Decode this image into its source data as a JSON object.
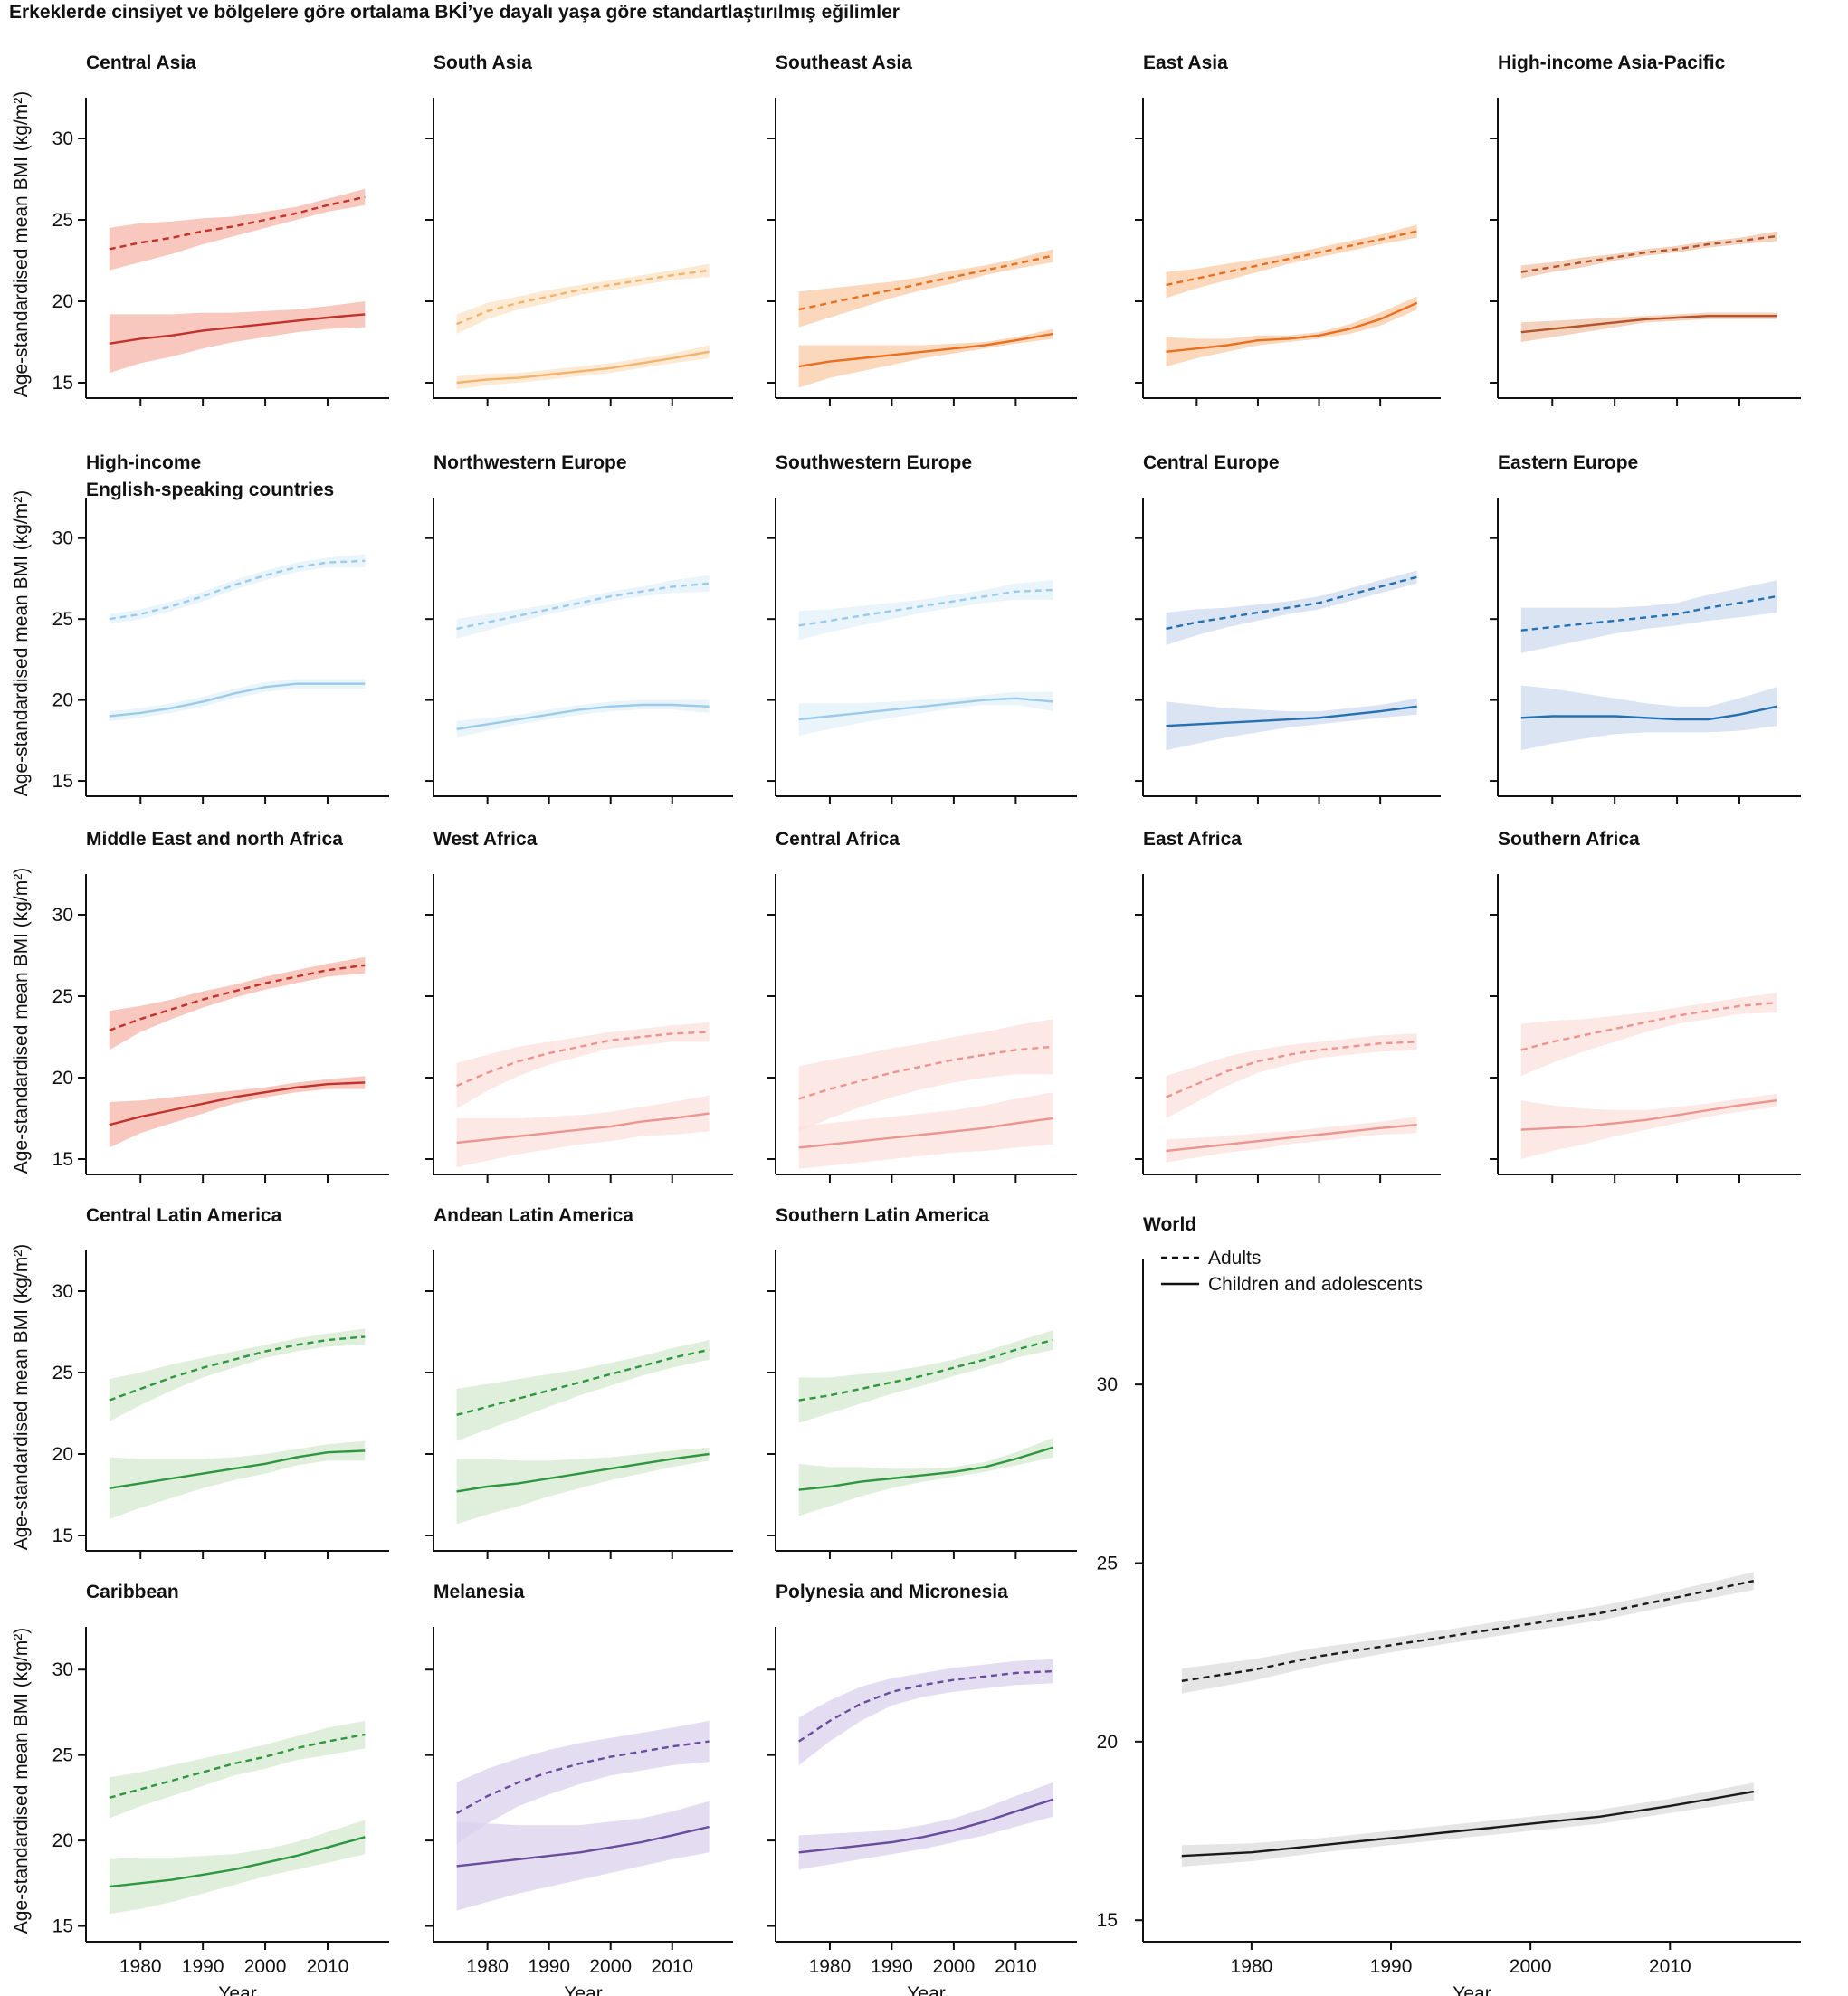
{
  "figure_title": "Erkeklerde cinsiyet ve bölgelere göre ortalama BKİ’ye dayalı yaşa göre standartlaştırılmış eğilimler",
  "chart_data": {
    "type": "line",
    "small_multiples": true,
    "x": [
      1975,
      1980,
      1985,
      1990,
      1995,
      2000,
      2005,
      2010,
      2016
    ],
    "x_ticks": [
      1980,
      1990,
      2000,
      2010
    ],
    "xlim": [
      1973,
      2019
    ],
    "xlabel": "Year",
    "ylabel": "Age-standardised mean BMI (kg/m²)",
    "y_ticks": [
      15,
      20,
      25,
      30
    ],
    "ylim": [
      14.5,
      32.5
    ],
    "grid": false,
    "legend": {
      "placement": "top-left of World panel",
      "entries": [
        {
          "label": "Adults",
          "style": "dashed"
        },
        {
          "label": "Children and adolescents",
          "style": "solid"
        }
      ]
    },
    "panels": [
      {
        "title": "Central Asia",
        "color": "#c0322b",
        "band": "#f5b5a8",
        "adults": [
          23.2,
          23.6,
          23.9,
          24.3,
          24.6,
          25.0,
          25.4,
          25.9,
          26.4
        ],
        "adults_ci": [
          1.3,
          1.2,
          1.0,
          0.8,
          0.6,
          0.5,
          0.4,
          0.4,
          0.5
        ],
        "children": [
          17.4,
          17.7,
          17.9,
          18.2,
          18.4,
          18.6,
          18.8,
          19.0,
          19.2
        ],
        "children_ci": [
          1.8,
          1.5,
          1.3,
          1.1,
          0.9,
          0.8,
          0.7,
          0.7,
          0.8
        ]
      },
      {
        "title": "South Asia",
        "color": "#f2b46c",
        "band": "#fce3c6",
        "adults": [
          18.6,
          19.4,
          19.9,
          20.3,
          20.7,
          21.0,
          21.3,
          21.6,
          21.9
        ],
        "adults_ci": [
          0.6,
          0.5,
          0.4,
          0.4,
          0.3,
          0.3,
          0.3,
          0.3,
          0.4
        ],
        "children": [
          15.0,
          15.2,
          15.3,
          15.5,
          15.7,
          15.9,
          16.2,
          16.5,
          16.9
        ],
        "children_ci": [
          0.4,
          0.35,
          0.3,
          0.3,
          0.3,
          0.3,
          0.3,
          0.3,
          0.4
        ]
      },
      {
        "title": "Southeast Asia",
        "color": "#e8701f",
        "band": "#f9c9a5",
        "adults": [
          19.5,
          19.9,
          20.3,
          20.7,
          21.1,
          21.5,
          21.9,
          22.3,
          22.8
        ],
        "adults_ci": [
          1.1,
          0.9,
          0.7,
          0.5,
          0.4,
          0.4,
          0.3,
          0.3,
          0.4
        ],
        "children": [
          16.0,
          16.3,
          16.5,
          16.7,
          16.9,
          17.1,
          17.3,
          17.6,
          18.0
        ],
        "children_ci": [
          1.3,
          1.0,
          0.8,
          0.6,
          0.4,
          0.3,
          0.2,
          0.2,
          0.3
        ]
      },
      {
        "title": "East Asia",
        "color": "#e8701f",
        "band": "#f9c9a5",
        "adults": [
          21.0,
          21.4,
          21.8,
          22.2,
          22.6,
          23.0,
          23.4,
          23.8,
          24.3
        ],
        "adults_ci": [
          0.8,
          0.6,
          0.5,
          0.4,
          0.3,
          0.3,
          0.3,
          0.3,
          0.4
        ],
        "children": [
          16.9,
          17.1,
          17.3,
          17.6,
          17.7,
          17.9,
          18.3,
          18.9,
          19.9
        ],
        "children_ci": [
          0.9,
          0.6,
          0.4,
          0.3,
          0.2,
          0.2,
          0.3,
          0.4,
          0.4
        ]
      },
      {
        "title": "High-income Asia-Pacific",
        "color": "#b5532a",
        "band": "#efc3a8",
        "adults": [
          21.8,
          22.1,
          22.4,
          22.7,
          23.0,
          23.2,
          23.5,
          23.7,
          24.0
        ],
        "adults_ci": [
          0.4,
          0.3,
          0.3,
          0.2,
          0.2,
          0.2,
          0.2,
          0.2,
          0.3
        ],
        "children": [
          18.1,
          18.3,
          18.5,
          18.7,
          18.9,
          19.0,
          19.1,
          19.1,
          19.1
        ],
        "children_ci": [
          0.6,
          0.5,
          0.4,
          0.3,
          0.2,
          0.2,
          0.2,
          0.2,
          0.2
        ]
      },
      {
        "title": "High-income English-speaking countries",
        "title_lines": [
          "High-income",
          "English-speaking countries"
        ],
        "color": "#9ccbea",
        "band": "#e2f0f9",
        "adults": [
          25.0,
          25.3,
          25.8,
          26.4,
          27.1,
          27.7,
          28.2,
          28.5,
          28.6
        ],
        "adults_ci": [
          0.3,
          0.3,
          0.3,
          0.3,
          0.3,
          0.3,
          0.3,
          0.3,
          0.4
        ],
        "children": [
          19.0,
          19.2,
          19.5,
          19.9,
          20.4,
          20.8,
          21.0,
          21.0,
          21.0
        ],
        "children_ci": [
          0.3,
          0.3,
          0.3,
          0.3,
          0.3,
          0.3,
          0.3,
          0.3,
          0.3
        ]
      },
      {
        "title": "Northwestern Europe",
        "color": "#9ccbea",
        "band": "#e2f0f9",
        "adults": [
          24.4,
          24.8,
          25.2,
          25.6,
          26.0,
          26.4,
          26.7,
          27.0,
          27.2
        ],
        "adults_ci": [
          0.6,
          0.5,
          0.4,
          0.3,
          0.3,
          0.3,
          0.3,
          0.4,
          0.5
        ],
        "children": [
          18.2,
          18.5,
          18.8,
          19.1,
          19.4,
          19.6,
          19.7,
          19.7,
          19.6
        ],
        "children_ci": [
          0.5,
          0.4,
          0.3,
          0.3,
          0.3,
          0.3,
          0.3,
          0.3,
          0.4
        ]
      },
      {
        "title": "Southwestern Europe",
        "color": "#9ccbea",
        "band": "#e2f0f9",
        "adults": [
          24.6,
          24.9,
          25.2,
          25.5,
          25.8,
          26.1,
          26.4,
          26.7,
          26.8
        ],
        "adults_ci": [
          0.9,
          0.7,
          0.6,
          0.5,
          0.4,
          0.4,
          0.4,
          0.5,
          0.6
        ],
        "children": [
          18.8,
          19.0,
          19.2,
          19.4,
          19.6,
          19.8,
          20.0,
          20.1,
          19.9
        ],
        "children_ci": [
          1.0,
          0.8,
          0.6,
          0.5,
          0.4,
          0.3,
          0.3,
          0.4,
          0.6
        ]
      },
      {
        "title": "Central Europe",
        "color": "#2470b1",
        "band": "#cfdbef",
        "adults": [
          24.4,
          24.8,
          25.1,
          25.4,
          25.7,
          26.0,
          26.5,
          27.0,
          27.6
        ],
        "adults_ci": [
          1.0,
          0.8,
          0.6,
          0.5,
          0.4,
          0.4,
          0.4,
          0.4,
          0.4
        ],
        "children": [
          18.4,
          18.5,
          18.6,
          18.7,
          18.8,
          18.9,
          19.1,
          19.3,
          19.6
        ],
        "children_ci": [
          1.5,
          1.2,
          0.9,
          0.7,
          0.5,
          0.4,
          0.4,
          0.4,
          0.5
        ]
      },
      {
        "title": "Eastern Europe",
        "color": "#2470b1",
        "band": "#cfdbef",
        "adults": [
          24.3,
          24.5,
          24.7,
          24.9,
          25.1,
          25.3,
          25.7,
          26.0,
          26.4
        ],
        "adults_ci": [
          1.4,
          1.2,
          1.0,
          0.8,
          0.7,
          0.7,
          0.8,
          0.9,
          1.0
        ],
        "children": [
          18.9,
          19.0,
          19.0,
          19.0,
          18.9,
          18.8,
          18.8,
          19.1,
          19.6
        ],
        "children_ci": [
          2.0,
          1.7,
          1.4,
          1.1,
          0.9,
          0.8,
          0.8,
          1.0,
          1.2
        ]
      },
      {
        "title": "Middle East and north Africa",
        "color": "#c0322b",
        "band": "#f5b5a8",
        "adults": [
          22.9,
          23.6,
          24.2,
          24.8,
          25.3,
          25.8,
          26.2,
          26.6,
          26.9
        ],
        "adults_ci": [
          1.2,
          0.8,
          0.6,
          0.5,
          0.4,
          0.4,
          0.4,
          0.4,
          0.5
        ],
        "children": [
          17.1,
          17.6,
          18.0,
          18.4,
          18.8,
          19.1,
          19.4,
          19.6,
          19.7
        ],
        "children_ci": [
          1.4,
          1.0,
          0.8,
          0.6,
          0.4,
          0.3,
          0.3,
          0.3,
          0.4
        ]
      },
      {
        "title": "West Africa",
        "color": "#ec9590",
        "band": "#fbe0dc",
        "adults": [
          19.5,
          20.3,
          21.0,
          21.5,
          21.9,
          22.3,
          22.5,
          22.7,
          22.8
        ],
        "adults_ci": [
          1.4,
          1.1,
          0.9,
          0.7,
          0.6,
          0.5,
          0.5,
          0.5,
          0.6
        ],
        "children": [
          16.0,
          16.2,
          16.4,
          16.6,
          16.8,
          17.0,
          17.3,
          17.5,
          17.8
        ],
        "children_ci": [
          1.5,
          1.3,
          1.1,
          1.0,
          0.9,
          0.9,
          0.9,
          1.0,
          1.1
        ]
      },
      {
        "title": "Central Africa",
        "color": "#ec9590",
        "band": "#fbe0dc",
        "adults": [
          18.7,
          19.3,
          19.8,
          20.3,
          20.7,
          21.1,
          21.4,
          21.7,
          21.9
        ],
        "adults_ci": [
          2.0,
          1.8,
          1.6,
          1.5,
          1.4,
          1.4,
          1.4,
          1.5,
          1.7
        ],
        "children": [
          15.7,
          15.9,
          16.1,
          16.3,
          16.5,
          16.7,
          16.9,
          17.2,
          17.5
        ],
        "children_ci": [
          1.3,
          1.3,
          1.3,
          1.3,
          1.3,
          1.3,
          1.4,
          1.5,
          1.6
        ]
      },
      {
        "title": "East Africa",
        "color": "#ec9590",
        "band": "#fbe0dc",
        "adults": [
          18.8,
          19.6,
          20.4,
          21.0,
          21.4,
          21.7,
          21.9,
          22.1,
          22.2
        ],
        "adults_ci": [
          1.3,
          1.1,
          0.9,
          0.7,
          0.6,
          0.5,
          0.5,
          0.5,
          0.5
        ],
        "children": [
          15.5,
          15.7,
          15.9,
          16.1,
          16.3,
          16.5,
          16.7,
          16.9,
          17.1
        ],
        "children_ci": [
          0.7,
          0.6,
          0.5,
          0.5,
          0.4,
          0.4,
          0.4,
          0.4,
          0.5
        ]
      },
      {
        "title": "Southern Africa",
        "color": "#ec9590",
        "band": "#fbe0dc",
        "adults": [
          21.7,
          22.2,
          22.6,
          23.0,
          23.4,
          23.8,
          24.1,
          24.4,
          24.6
        ],
        "adults_ci": [
          1.6,
          1.3,
          1.0,
          0.8,
          0.6,
          0.5,
          0.5,
          0.5,
          0.6
        ],
        "children": [
          16.8,
          16.9,
          17.0,
          17.2,
          17.4,
          17.7,
          18.0,
          18.3,
          18.6
        ],
        "children_ci": [
          1.8,
          1.4,
          1.1,
          0.8,
          0.6,
          0.5,
          0.4,
          0.4,
          0.4
        ]
      },
      {
        "title": "Central Latin America",
        "color": "#2e9640",
        "band": "#d4e9cf",
        "adults": [
          23.3,
          24.0,
          24.7,
          25.3,
          25.8,
          26.3,
          26.7,
          27.0,
          27.2
        ],
        "adults_ci": [
          1.3,
          1.0,
          0.8,
          0.6,
          0.5,
          0.4,
          0.4,
          0.4,
          0.5
        ],
        "children": [
          17.9,
          18.2,
          18.5,
          18.8,
          19.1,
          19.4,
          19.8,
          20.1,
          20.2
        ],
        "children_ci": [
          1.9,
          1.5,
          1.2,
          0.9,
          0.7,
          0.6,
          0.5,
          0.5,
          0.6
        ]
      },
      {
        "title": "Andean Latin America",
        "color": "#2e9640",
        "band": "#d4e9cf",
        "adults": [
          22.4,
          22.9,
          23.4,
          23.9,
          24.4,
          24.9,
          25.4,
          25.9,
          26.4
        ],
        "adults_ci": [
          1.6,
          1.4,
          1.2,
          1.0,
          0.8,
          0.7,
          0.6,
          0.6,
          0.6
        ],
        "children": [
          17.7,
          18.0,
          18.2,
          18.5,
          18.8,
          19.1,
          19.4,
          19.7,
          20.0
        ],
        "children_ci": [
          2.0,
          1.7,
          1.4,
          1.1,
          0.9,
          0.7,
          0.6,
          0.5,
          0.4
        ]
      },
      {
        "title": "Southern Latin America",
        "color": "#2e9640",
        "band": "#d4e9cf",
        "adults": [
          23.3,
          23.6,
          24.0,
          24.4,
          24.8,
          25.3,
          25.8,
          26.4,
          27.0
        ],
        "adults_ci": [
          1.4,
          1.1,
          0.9,
          0.7,
          0.6,
          0.5,
          0.5,
          0.5,
          0.6
        ],
        "children": [
          17.8,
          18.0,
          18.3,
          18.5,
          18.7,
          18.9,
          19.2,
          19.7,
          20.4
        ],
        "children_ci": [
          1.6,
          1.2,
          0.9,
          0.6,
          0.4,
          0.3,
          0.3,
          0.4,
          0.6
        ]
      },
      {
        "title": "Caribbean",
        "color": "#2e9640",
        "band": "#d4e9cf",
        "adults": [
          22.5,
          23.0,
          23.5,
          24.0,
          24.5,
          24.9,
          25.4,
          25.8,
          26.2
        ],
        "adults_ci": [
          1.2,
          1.0,
          0.9,
          0.8,
          0.7,
          0.7,
          0.7,
          0.8,
          0.8
        ],
        "children": [
          17.3,
          17.5,
          17.7,
          18.0,
          18.3,
          18.7,
          19.1,
          19.6,
          20.2
        ],
        "children_ci": [
          1.6,
          1.5,
          1.3,
          1.1,
          0.9,
          0.8,
          0.8,
          0.9,
          1.0
        ]
      },
      {
        "title": "Melanesia",
        "color": "#6a4c9c",
        "band": "#dbd2ee",
        "adults": [
          21.6,
          22.6,
          23.4,
          24.0,
          24.5,
          24.9,
          25.2,
          25.5,
          25.8
        ],
        "adults_ci": [
          1.8,
          1.6,
          1.4,
          1.3,
          1.2,
          1.1,
          1.1,
          1.1,
          1.2
        ],
        "children": [
          18.5,
          18.7,
          18.9,
          19.1,
          19.3,
          19.6,
          19.9,
          20.3,
          20.8
        ],
        "children_ci": [
          2.6,
          2.3,
          2.0,
          1.8,
          1.6,
          1.5,
          1.4,
          1.4,
          1.5
        ]
      },
      {
        "title": "Polynesia and Micronesia",
        "color": "#6a4c9c",
        "band": "#dbd2ee",
        "adults": [
          25.8,
          27.0,
          28.0,
          28.7,
          29.1,
          29.4,
          29.6,
          29.8,
          29.9
        ],
        "adults_ci": [
          1.4,
          1.2,
          1.0,
          0.8,
          0.7,
          0.7,
          0.7,
          0.7,
          0.7
        ],
        "children": [
          19.3,
          19.5,
          19.7,
          19.9,
          20.2,
          20.6,
          21.1,
          21.7,
          22.4
        ],
        "children_ci": [
          1.0,
          0.9,
          0.8,
          0.7,
          0.7,
          0.7,
          0.8,
          0.9,
          1.0
        ]
      },
      {
        "title": "World",
        "color": "#1a1a1a",
        "band": "#dcdcdc",
        "ylim": [
          14.6,
          33.5
        ],
        "large": true,
        "adults": [
          21.7,
          22.0,
          22.4,
          22.7,
          23.0,
          23.3,
          23.6,
          24.0,
          24.5
        ],
        "adults_ci": [
          0.35,
          0.3,
          0.25,
          0.2,
          0.2,
          0.2,
          0.2,
          0.2,
          0.25
        ],
        "children": [
          16.8,
          16.9,
          17.1,
          17.3,
          17.5,
          17.7,
          17.9,
          18.2,
          18.6
        ],
        "children_ci": [
          0.3,
          0.25,
          0.2,
          0.2,
          0.2,
          0.2,
          0.2,
          0.2,
          0.25
        ]
      }
    ]
  }
}
